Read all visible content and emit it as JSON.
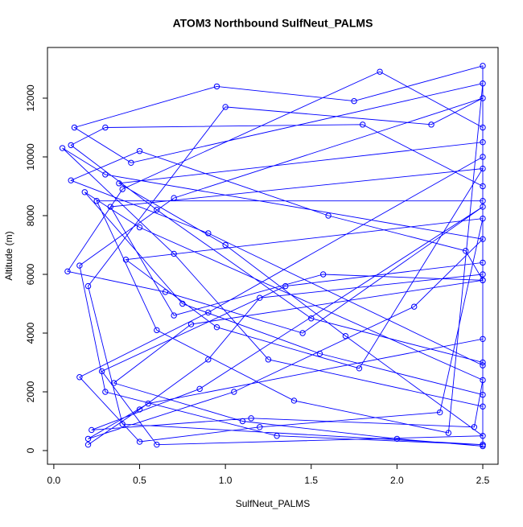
{
  "chart_data": {
    "type": "line",
    "title": "ATOM3 Northbound SulfNeut_PALMS",
    "x_label": "SulfNeut_PALMS",
    "y_label": "Altitude (m)",
    "color": "#0000ff",
    "xlim": [
      -0.037,
      2.589
    ],
    "ylim": [
      -466,
      13726
    ],
    "xticks": [
      {
        "value": 0,
        "label": "0.0"
      },
      0.5,
      {
        "value": 1,
        "label": "1.0"
      },
      1.5,
      {
        "value": 2,
        "label": "2.0"
      },
      2.5
    ],
    "yticks": [
      0,
      2000,
      4000,
      6000,
      8000,
      10000,
      12000
    ],
    "x": [
      0.2,
      0.5,
      0.9,
      1.2,
      2.5,
      2.5,
      1.8,
      0.3,
      0.1,
      0.6,
      1.5,
      2.5,
      2.5,
      0.4,
      0.2,
      1.0,
      2.2,
      2.5,
      0.7,
      0.15,
      0.3,
      1.3,
      2.5,
      2.5,
      0.9,
      0.1,
      0.5,
      1.6,
      2.4,
      2.5,
      0.8,
      0.35,
      1.1,
      2.0,
      2.5,
      2.5,
      0.25,
      0.6,
      1.4,
      2.3,
      2.5,
      0.45,
      0.12,
      0.95,
      1.75,
      2.5,
      2.5,
      0.55,
      0.2,
      1.05,
      2.1,
      2.5,
      0.3,
      0.05,
      0.7,
      1.25,
      2.5,
      2.5,
      1.9,
      0.4,
      0.08,
      0.65,
      1.45,
      2.5,
      0.85,
      0.22,
      1.15,
      2.45,
      2.5,
      0.5,
      0.18,
      0.75,
      1.55,
      2.5,
      2.5,
      0.38,
      1.0,
      1.7,
      2.5,
      0.6,
      0.28,
      1.35,
      2.5,
      2.5,
      0.9,
      0.15,
      0.5,
      1.2,
      2.25,
      2.5,
      0.42,
      0.95,
      1.78,
      2.5,
      0.33,
      0.7,
      1.57,
      2.5
    ],
    "values": [
      200,
      1400,
      3100,
      5200,
      6000,
      9000,
      11100,
      11000,
      10400,
      8200,
      4500,
      3000,
      200,
      900,
      5600,
      11700,
      11100,
      12000,
      8600,
      6300,
      2000,
      500,
      200,
      2900,
      7400,
      9200,
      10200,
      8000,
      6800,
      5800,
      4300,
      2300,
      1000,
      400,
      150,
      8500,
      8500,
      4100,
      1700,
      600,
      12500,
      9800,
      11000,
      12400,
      11900,
      13100,
      3800,
      1600,
      400,
      2000,
      4900,
      7200,
      9400,
      10300,
      6700,
      3100,
      1500,
      11000,
      12900,
      8900,
      6100,
      5400,
      4000,
      8300,
      2100,
      700,
      1100,
      800,
      2400,
      7600,
      8800,
      5000,
      3300,
      1900,
      10500,
      9100,
      7000,
      3900,
      500,
      200,
      2700,
      5600,
      6400,
      10000,
      4700,
      2500,
      300,
      800,
      1300,
      7900,
      6500,
      4200,
      2800,
      9600,
      8300,
      4600,
      6000,
      5800
    ]
  }
}
